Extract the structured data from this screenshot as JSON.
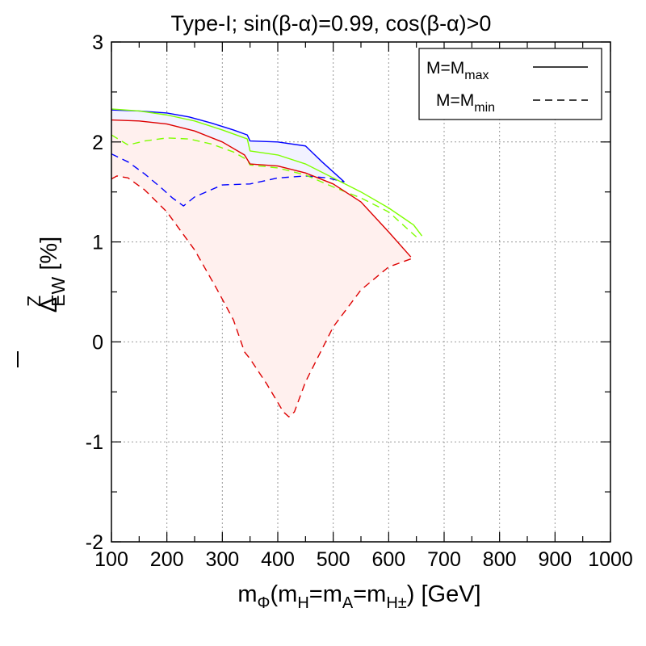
{
  "chart_data": {
    "type": "line",
    "title": "Type-I; sin(β-α)=0.99, cos(β-α)>0",
    "xlabel": {
      "main": "m",
      "main_sub": "Φ",
      "paren": "(m",
      "paren_sub1": "H",
      "eq1": "=m",
      "paren_sub2": "A",
      "eq2": "=m",
      "paren_sub3": "H±",
      "unit": ") [GeV]"
    },
    "ylabel": {
      "delta": "Δ",
      "sup": "Z",
      "sub": "EW",
      "unit": " [%]"
    },
    "xlim": [
      100,
      1000
    ],
    "ylim": [
      -2,
      3
    ],
    "x_ticks": [
      100,
      200,
      300,
      400,
      500,
      600,
      700,
      800,
      900,
      1000
    ],
    "x_tick_labels": [
      "100",
      "200",
      "300",
      "400",
      "500",
      "600",
      "700",
      "800",
      "900",
      "1000"
    ],
    "y_ticks": [
      -2,
      -1,
      0,
      1,
      2,
      3
    ],
    "y_tick_labels": [
      "-2",
      "-1",
      "0",
      "1",
      "2",
      "3"
    ],
    "x_minor_step": 50,
    "y_minor_step": 0.5,
    "grid": true,
    "legend": {
      "position": "top-right",
      "entries": [
        {
          "base": "M=M",
          "sub": "max",
          "style": "solid"
        },
        {
          "base": "M=M",
          "sub": "min",
          "style": "dashed"
        }
      ]
    },
    "colors": {
      "blue": "#0000ff",
      "green": "#7fff00",
      "red": "#dd0000",
      "blue_fill": "#f2f2ff",
      "red_fill": "#fff0ee"
    },
    "series": [
      {
        "name": "blue-max",
        "color": "#0000ff",
        "style": "solid",
        "x": [
          100,
          150,
          200,
          240,
          280,
          320,
          345,
          350,
          400,
          450,
          480,
          500,
          520
        ],
        "y": [
          2.32,
          2.31,
          2.29,
          2.25,
          2.19,
          2.12,
          2.07,
          2.01,
          2.0,
          1.96,
          1.8,
          1.7,
          1.6
        ]
      },
      {
        "name": "blue-min",
        "color": "#0000ff",
        "style": "dashed",
        "x": [
          100,
          130,
          160,
          190,
          210,
          230,
          250,
          300,
          350,
          400,
          450,
          490,
          520
        ],
        "y": [
          1.88,
          1.8,
          1.68,
          1.54,
          1.44,
          1.36,
          1.45,
          1.57,
          1.58,
          1.64,
          1.66,
          1.64,
          1.6
        ]
      },
      {
        "name": "green-max",
        "color": "#7fff00",
        "style": "solid",
        "x": [
          100,
          150,
          200,
          250,
          300,
          345,
          350,
          400,
          450,
          500,
          550,
          600,
          645,
          660
        ],
        "y": [
          2.33,
          2.31,
          2.27,
          2.21,
          2.12,
          2.03,
          1.91,
          1.87,
          1.78,
          1.64,
          1.5,
          1.34,
          1.17,
          1.06
        ]
      },
      {
        "name": "green-min",
        "color": "#7fff00",
        "style": "dashed",
        "x": [
          100,
          130,
          160,
          200,
          240,
          280,
          320,
          345,
          350,
          400,
          450,
          500,
          550,
          600,
          650
        ],
        "y": [
          2.07,
          1.97,
          2.01,
          2.04,
          2.03,
          1.98,
          1.9,
          1.82,
          1.77,
          1.74,
          1.67,
          1.55,
          1.44,
          1.3,
          1.05
        ]
      },
      {
        "name": "red-max",
        "color": "#dd0000",
        "style": "solid",
        "x": [
          100,
          150,
          200,
          250,
          300,
          340,
          350,
          400,
          450,
          500,
          550,
          600,
          640
        ],
        "y": [
          2.22,
          2.21,
          2.18,
          2.11,
          2.0,
          1.87,
          1.78,
          1.76,
          1.69,
          1.58,
          1.4,
          1.1,
          0.85
        ]
      },
      {
        "name": "red-min",
        "color": "#dd0000",
        "style": "dashed",
        "x": [
          100,
          110,
          130,
          160,
          200,
          250,
          290,
          320,
          340,
          350,
          380,
          410,
          420,
          430,
          450,
          500,
          550,
          600,
          640
        ],
        "y": [
          1.63,
          1.66,
          1.64,
          1.52,
          1.3,
          0.92,
          0.53,
          0.22,
          -0.1,
          -0.17,
          -0.42,
          -0.7,
          -0.75,
          -0.7,
          -0.4,
          0.15,
          0.52,
          0.75,
          0.83
        ]
      }
    ],
    "bands": [
      {
        "name": "blue-band",
        "upper": "blue-max",
        "lower": "blue-min",
        "color": "#f2f2ff"
      },
      {
        "name": "red-band",
        "upper": "red-max",
        "lower": "red-min",
        "color": "#fff0ee"
      }
    ]
  }
}
